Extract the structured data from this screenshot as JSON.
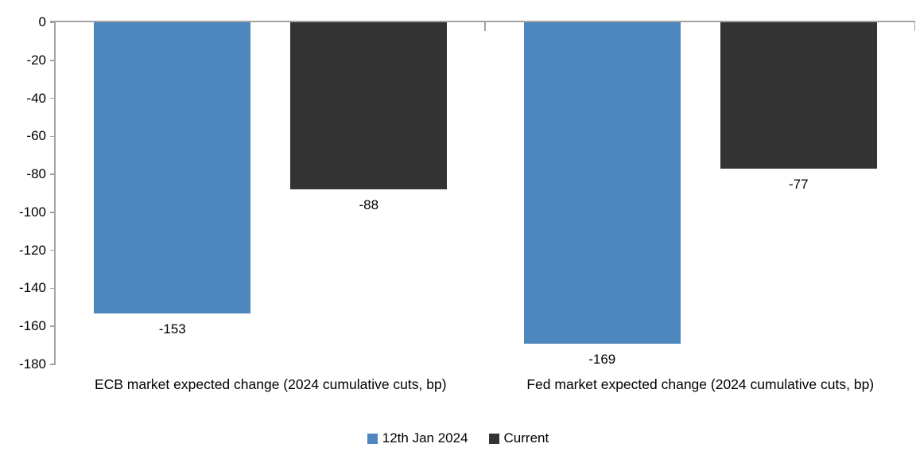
{
  "chart_data": {
    "type": "bar",
    "categories": [
      "ECB market expected change (2024 cumulative cuts, bp)",
      "Fed market expected change (2024 cumulative cuts, bp)"
    ],
    "series": [
      {
        "name": "12th Jan 2024",
        "color": "#4E86BE",
        "values": [
          -153,
          -169
        ],
        "data_labels": [
          "-153",
          "-169"
        ]
      },
      {
        "name": "Current",
        "color": "#333333",
        "values": [
          -88,
          -77
        ],
        "data_labels": [
          "-88",
          "-77"
        ]
      }
    ],
    "title": "",
    "xlabel": "",
    "ylabel": "",
    "ylim": [
      -180,
      0
    ],
    "ytick_interval": 20,
    "ytick_labels": [
      "0",
      "-20",
      "-40",
      "-60",
      "-80",
      "-100",
      "-120",
      "-140",
      "-160",
      "-180"
    ],
    "grid": false,
    "data_labels_shown": true,
    "legend_position": "bottom",
    "axis_color": "#A3A3A3",
    "text_color": "#000000",
    "background_color": "#FFFFFF"
  }
}
